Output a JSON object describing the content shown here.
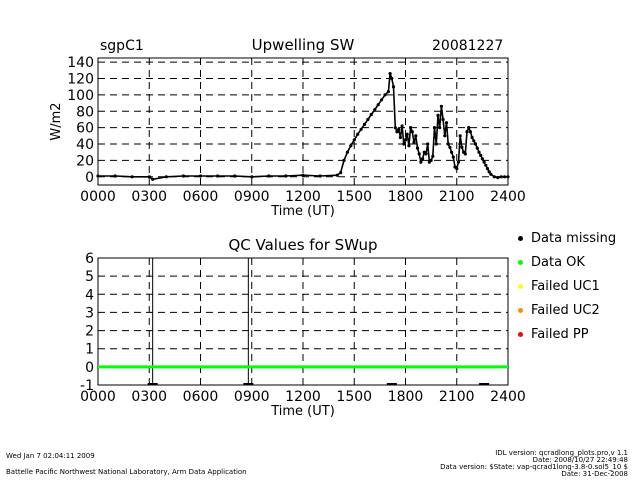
{
  "header": {
    "site": "sgpC1",
    "date": "20081227"
  },
  "chart_data": [
    {
      "type": "scatter",
      "title": "Upwelling SW",
      "xlabel": "Time (UT)",
      "ylabel": "W/m2",
      "xlim": [
        0,
        2400
      ],
      "ylim": [
        -10,
        145
      ],
      "x_ticks": [
        "0000",
        "0300",
        "0600",
        "0900",
        "1200",
        "1500",
        "1800",
        "2100",
        "2400"
      ],
      "y_ticks": [
        0,
        20,
        40,
        60,
        80,
        100,
        120,
        140
      ],
      "grid": true,
      "series": [
        {
          "name": "SWup",
          "color": "#000000",
          "x": [
            0,
            100,
            200,
            300,
            320,
            400,
            500,
            600,
            700,
            800,
            900,
            1000,
            1100,
            1200,
            1300,
            1400,
            1420,
            1440,
            1460,
            1480,
            1500,
            1520,
            1540,
            1560,
            1580,
            1600,
            1620,
            1640,
            1660,
            1680,
            1700,
            1710,
            1720,
            1730,
            1740,
            1750,
            1760,
            1770,
            1780,
            1790,
            1800,
            1810,
            1820,
            1830,
            1840,
            1850,
            1860,
            1870,
            1880,
            1890,
            1900,
            1910,
            1920,
            1930,
            1940,
            1950,
            1960,
            1970,
            1980,
            1990,
            2000,
            2010,
            2020,
            2030,
            2040,
            2050,
            2060,
            2070,
            2080,
            2090,
            2100,
            2110,
            2120,
            2130,
            2140,
            2150,
            2160,
            2170,
            2180,
            2190,
            2200,
            2210,
            2220,
            2230,
            2240,
            2250,
            2260,
            2270,
            2280,
            2290,
            2300,
            2320,
            2340,
            2360,
            2380,
            2400
          ],
          "y": [
            1,
            1,
            0,
            0,
            -3,
            0,
            1,
            1,
            1,
            1,
            0,
            1,
            1,
            2,
            1,
            2,
            5,
            20,
            30,
            38,
            45,
            52,
            58,
            64,
            70,
            76,
            82,
            88,
            94,
            100,
            104,
            126,
            120,
            110,
            60,
            55,
            58,
            48,
            62,
            40,
            45,
            52,
            38,
            60,
            55,
            42,
            50,
            35,
            28,
            18,
            22,
            30,
            28,
            40,
            18,
            20,
            25,
            60,
            40,
            75,
            60,
            86,
            70,
            50,
            66,
            40,
            36,
            30,
            24,
            12,
            10,
            18,
            50,
            36,
            30,
            28,
            55,
            60,
            55,
            48,
            44,
            40,
            35,
            30,
            26,
            22,
            18,
            14,
            10,
            6,
            3,
            0,
            -1,
            0,
            0,
            0
          ]
        }
      ]
    },
    {
      "type": "scatter",
      "title": "QC Values for SWup",
      "xlabel": "Time (UT)",
      "xlim": [
        0,
        2400
      ],
      "ylim": [
        -1,
        6
      ],
      "x_ticks": [
        "0000",
        "0300",
        "0600",
        "0900",
        "1200",
        "1500",
        "1800",
        "2100",
        "2400"
      ],
      "y_ticks": [
        -1,
        0,
        1,
        2,
        3,
        4,
        5,
        6
      ],
      "grid": true,
      "series": [
        {
          "name": "Data OK",
          "color": "#00ff00",
          "x_range": [
            0,
            2400
          ],
          "value": 0
        }
      ],
      "missing_marks": [
        {
          "x": 320,
          "value": -1
        },
        {
          "x": 880,
          "value": -1
        },
        {
          "x": 1720,
          "value": -1
        },
        {
          "x": 2260,
          "value": -1
        }
      ],
      "vertical_lines": [
        320,
        880
      ]
    }
  ],
  "legend": [
    {
      "label": "Data missing",
      "color": "#000000"
    },
    {
      "label": "Data OK",
      "color": "#00ff00"
    },
    {
      "label": "Failed UC1",
      "color": "#ffff00"
    },
    {
      "label": "Failed UC2",
      "color": "#ff8c00"
    },
    {
      "label": "Failed PP",
      "color": "#ff0000"
    }
  ],
  "footer": {
    "timestamp": "Wed Jan  7 02:04:11 2009",
    "lab": "Battelle Pacific Northwest National Laboratory, Arm Data Application",
    "idl_version": "IDL version: qcradlong_plots.pro,v 1.1",
    "idl_date": "Date: 2008/10/27 22:49:48",
    "data_version": "Data version: $State: vap-qcrad1long-3.8-0.sol5_10 $",
    "data_date": "Date: 31-Dec-2008"
  }
}
